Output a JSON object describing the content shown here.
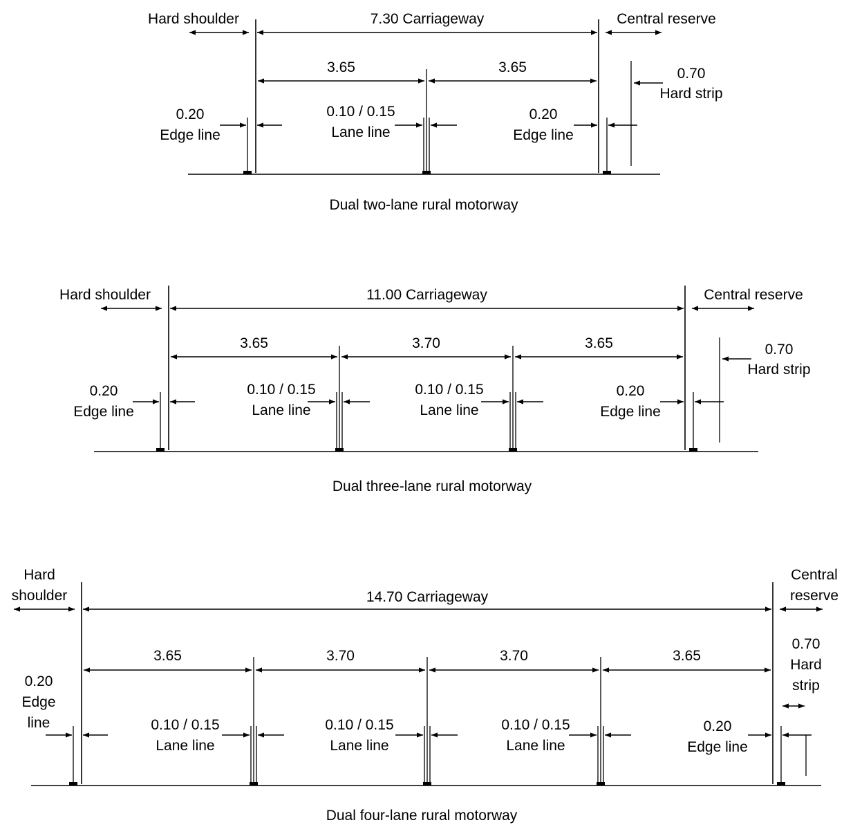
{
  "diagrams": [
    {
      "caption": "Dual two-lane rural motorway",
      "hard_shoulder_label": "Hard shoulder",
      "carriageway_label": "7.30 Carriageway",
      "central_reserve_label": "Central reserve",
      "lane_widths": [
        "3.65",
        "3.65"
      ],
      "hard_strip": {
        "width": "0.70",
        "label": "Hard strip"
      },
      "left_edge_line": {
        "width": "0.20",
        "label": "Edge line"
      },
      "lane_lines": [
        {
          "width": "0.10 / 0.15",
          "label": "Lane line"
        }
      ],
      "right_edge_line": {
        "width": "0.20",
        "label": "Edge line"
      }
    },
    {
      "caption": "Dual three-lane rural motorway",
      "hard_shoulder_label": "Hard shoulder",
      "carriageway_label": "11.00 Carriageway",
      "central_reserve_label": "Central reserve",
      "lane_widths": [
        "3.65",
        "3.70",
        "3.65"
      ],
      "hard_strip": {
        "width": "0.70",
        "label": "Hard strip"
      },
      "left_edge_line": {
        "width": "0.20",
        "label": "Edge line"
      },
      "lane_lines": [
        {
          "width": "0.10 / 0.15",
          "label": "Lane line"
        },
        {
          "width": "0.10 / 0.15",
          "label": "Lane line"
        }
      ],
      "right_edge_line": {
        "width": "0.20",
        "label": "Edge line"
      }
    },
    {
      "caption": "Dual four-lane rural motorway",
      "hard_shoulder_label": [
        "Hard",
        "shoulder"
      ],
      "carriageway_label": "14.70 Carriageway",
      "central_reserve_label": [
        "Central",
        "reserve"
      ],
      "lane_widths": [
        "3.65",
        "3.70",
        "3.70",
        "3.65"
      ],
      "hard_strip": {
        "width": "0.70",
        "label": [
          "Hard",
          "strip"
        ]
      },
      "left_edge_line": {
        "width": "0.20",
        "label": [
          "Edge",
          "line"
        ]
      },
      "lane_lines": [
        {
          "width": "0.10 / 0.15",
          "label": "Lane line"
        },
        {
          "width": "0.10 / 0.15",
          "label": "Lane line"
        },
        {
          "width": "0.10 / 0.15",
          "label": "Lane line"
        }
      ],
      "right_edge_line": {
        "width": "0.20",
        "label": "Edge line"
      }
    }
  ]
}
